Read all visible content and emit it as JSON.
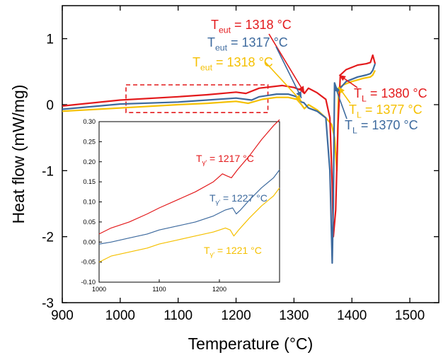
{
  "chart_data": [
    {
      "type": "line",
      "xlabel": "Temperature (°C)",
      "ylabel": "Heat flow (mW/mg)",
      "xlim": [
        900,
        1550
      ],
      "ylim": [
        -3,
        1.5
      ],
      "xticks": [
        "900",
        "1000",
        "1100",
        "1200",
        "1300",
        "1400",
        "1500"
      ],
      "yticks": [
        "-3",
        "-2",
        "-1",
        "0",
        "1"
      ],
      "colors": {
        "red": "#e31a1c",
        "blue": "#3d6a9e",
        "yellow": "#f5c000"
      },
      "series": [
        {
          "color": "#e31a1c",
          "x": [
            900,
            1000,
            1100,
            1150,
            1200,
            1217,
            1240,
            1280,
            1300,
            1312,
            1318,
            1325,
            1340,
            1355,
            1362,
            1366,
            1368,
            1372,
            1376,
            1380,
            1390,
            1410,
            1425,
            1432,
            1436,
            1440
          ],
          "y": [
            -0.02,
            0.07,
            0.12,
            0.15,
            0.19,
            0.17,
            0.25,
            0.29,
            0.26,
            0.22,
            0.17,
            0.25,
            0.18,
            0.08,
            -0.2,
            -1.2,
            -2.0,
            -1.6,
            -0.3,
            0.45,
            0.53,
            0.6,
            0.62,
            0.64,
            0.75,
            0.62
          ]
        },
        {
          "color": "#3d6a9e",
          "x": [
            900,
            1000,
            1100,
            1150,
            1200,
            1227,
            1240,
            1270,
            1290,
            1305,
            1313,
            1317,
            1325,
            1340,
            1355,
            1362,
            1366,
            1368,
            1370,
            1375,
            1390,
            1410,
            1425,
            1432,
            1436,
            1440
          ],
          "y": [
            -0.07,
            0.01,
            0.04,
            0.07,
            0.1,
            0.07,
            0.12,
            0.16,
            0.16,
            0.12,
            0.04,
            0.03,
            -0.05,
            -0.1,
            -0.2,
            -1.0,
            -2.4,
            -1.5,
            0.33,
            0.2,
            0.35,
            0.42,
            0.45,
            0.47,
            0.52,
            0.62
          ]
        },
        {
          "color": "#f5c000",
          "x": [
            900,
            1000,
            1100,
            1150,
            1200,
            1221,
            1245,
            1270,
            1290,
            1305,
            1313,
            1318,
            1325,
            1340,
            1355,
            1365,
            1370,
            1374,
            1377,
            1385,
            1400,
            1420,
            1432,
            1436,
            1440
          ],
          "y": [
            -0.1,
            -0.05,
            0.0,
            0.02,
            0.05,
            0.02,
            0.08,
            0.11,
            0.11,
            0.08,
            0.0,
            -0.06,
            0.0,
            -0.08,
            -0.2,
            -0.3,
            -0.5,
            -1.0,
            0.25,
            0.3,
            0.35,
            0.4,
            0.42,
            0.45,
            0.52
          ]
        }
      ],
      "annotations": [
        {
          "base": "T",
          "sub": "eut",
          "text": " = 1318 °C",
          "color": "#e31a1c",
          "target": [
            1318,
            0.18
          ]
        },
        {
          "base": "T",
          "sub": "eut",
          "text": " = 1317 °C",
          "color": "#3d6a9e",
          "target": [
            1313,
            0.1
          ]
        },
        {
          "base": "T",
          "sub": "eut",
          "text": " = 1318 °C",
          "color": "#f5c000",
          "target": [
            1313,
            0.05
          ]
        },
        {
          "base": "T",
          "sub": "L",
          "text": " = 1380 °C",
          "color": "#e31a1c",
          "target": [
            1378,
            0.45
          ]
        },
        {
          "base": "T",
          "sub": "L",
          "text": " = 1377 °C",
          "color": "#f5c000",
          "target": [
            1377,
            0.27
          ]
        },
        {
          "base": "T",
          "sub": "L",
          "text": " = 1370 °C",
          "color": "#3d6a9e",
          "target": [
            1370,
            0.3
          ]
        }
      ],
      "highlight_box": {
        "x": [
          1010,
          1255
        ],
        "y": [
          -0.12,
          0.3
        ],
        "color": "#e31a1c"
      }
    },
    {
      "type": "line",
      "xlim": [
        1000,
        1300
      ],
      "ylim": [
        -0.1,
        0.3
      ],
      "xticks": [
        "1000",
        "1100",
        "1200"
      ],
      "yticks": [
        "-0.10",
        "-0.05",
        "0.00",
        "0.05",
        "0.10",
        "0.15",
        "0.20",
        "0.25",
        "0.30"
      ],
      "series": [
        {
          "color": "#e31a1c",
          "x": [
            1000,
            1020,
            1050,
            1080,
            1100,
            1130,
            1160,
            1190,
            1205,
            1212,
            1220,
            1230,
            1250,
            1270,
            1290,
            1300
          ],
          "y": [
            0.02,
            0.035,
            0.05,
            0.07,
            0.085,
            0.105,
            0.125,
            0.15,
            0.17,
            0.165,
            0.16,
            0.18,
            0.215,
            0.255,
            0.29,
            0.305
          ]
        },
        {
          "color": "#3d6a9e",
          "x": [
            1000,
            1020,
            1050,
            1080,
            1100,
            1130,
            1160,
            1190,
            1210,
            1222,
            1228,
            1235,
            1250,
            1270,
            1290,
            1300
          ],
          "y": [
            -0.005,
            0.0,
            0.01,
            0.02,
            0.03,
            0.04,
            0.05,
            0.065,
            0.08,
            0.085,
            0.07,
            0.08,
            0.105,
            0.135,
            0.16,
            0.18
          ]
        },
        {
          "color": "#f5c000",
          "x": [
            1000,
            1020,
            1050,
            1080,
            1100,
            1130,
            1160,
            1190,
            1210,
            1218,
            1224,
            1232,
            1250,
            1270,
            1290,
            1300
          ],
          "y": [
            -0.05,
            -0.035,
            -0.025,
            -0.015,
            -0.005,
            0.005,
            0.015,
            0.025,
            0.035,
            0.03,
            0.015,
            0.03,
            0.06,
            0.09,
            0.115,
            0.135
          ]
        }
      ],
      "annotations": [
        {
          "base": "T",
          "sub": "γ'",
          "text": " = 1217 °C",
          "color": "#e31a1c"
        },
        {
          "base": "T",
          "sub": "γ'",
          "text": " = 1227 °C",
          "color": "#3d6a9e"
        },
        {
          "base": "T",
          "sub": "γ'",
          "text": " = 1221 °C",
          "color": "#f5c000"
        }
      ]
    }
  ]
}
